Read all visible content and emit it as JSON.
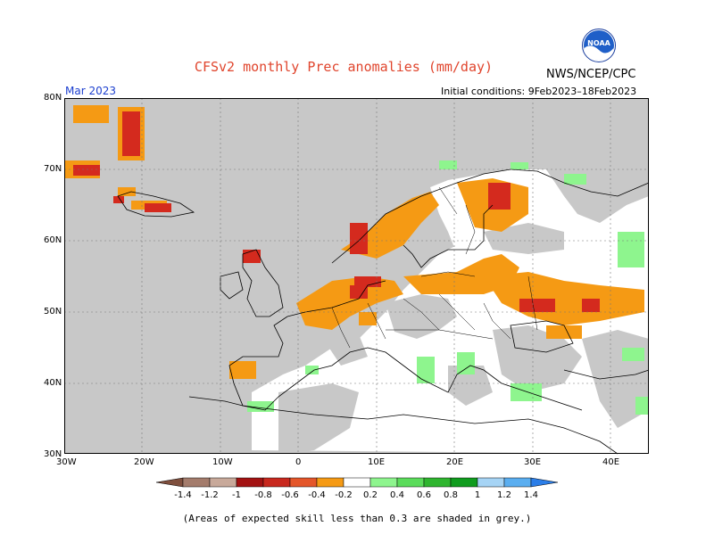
{
  "header": {
    "title": "CFSv2 monthly Prec anomalies (mm/day)",
    "agency": "NWS/NCEP/CPC",
    "month": "Mar 2023",
    "initial_conditions": "Initial conditions:  9Feb2023–18Feb2023",
    "logo_text": "NOAA"
  },
  "map": {
    "lat_labels": [
      "80N",
      "70N",
      "60N",
      "50N",
      "40N",
      "30N"
    ],
    "lon_labels": [
      "30W",
      "20W",
      "10W",
      "0",
      "10E",
      "20E",
      "30E",
      "40E"
    ],
    "lat_range": [
      30,
      80
    ],
    "lon_range": [
      -30,
      45
    ],
    "grid": "dotted",
    "ocean_color": "#c8c8c8"
  },
  "legend": {
    "ticks": [
      "-1.4",
      "-1.2",
      "-1",
      "-0.8",
      "-0.6",
      "-0.4",
      "-0.2",
      "0.2",
      "0.4",
      "0.6",
      "0.8",
      "1",
      "1.2",
      "1.4"
    ],
    "colors": [
      "#7f4f3d",
      "#a47c6c",
      "#c8a99a",
      "#a31212",
      "#c8281e",
      "#e4562a",
      "#f59a14",
      "#ffffff",
      "#8ef58e",
      "#5bdc5b",
      "#2fb52f",
      "#109c1e",
      "#a6d4f5",
      "#5aaef0",
      "#2b7ee8"
    ]
  },
  "note": "(Areas of expected skill less than 0.3 are shaded in grey.)",
  "colors": {
    "grey_skill": "#c8c8c8",
    "dry_strong": "#d42a1e",
    "dry_moderate": "#f59a14",
    "wet_weak": "#8ef58e"
  }
}
